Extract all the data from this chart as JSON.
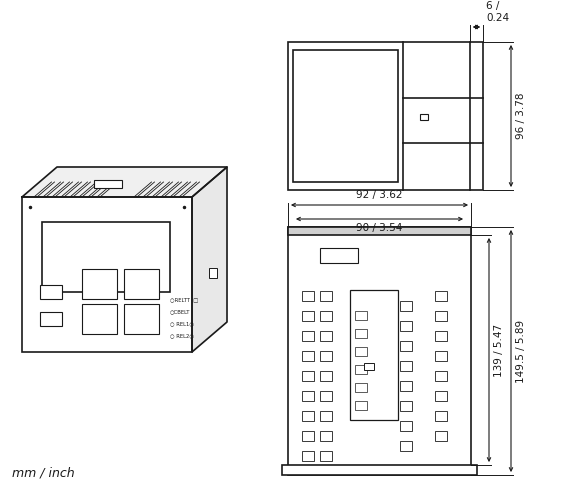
{
  "bg_color": "#ffffff",
  "line_color": "#1a1a1a",
  "dim_color": "#000000",
  "figsize": [
    5.67,
    4.97
  ],
  "dpi": 100,
  "footer_text": "mm / inch",
  "dimensions": {
    "top_width": "6 /\n0.24",
    "side_height": "96 / 3.78",
    "front_width_outer": "92 / 3.62",
    "front_width_inner": "90 / 3.54",
    "front_height_inner": "139 / 5.47",
    "front_height_outer": "149.5 / 5.89"
  }
}
